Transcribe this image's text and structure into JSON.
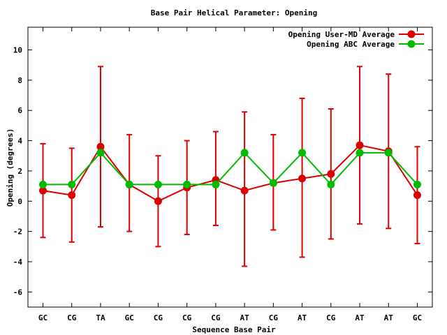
{
  "chart_data": {
    "type": "line",
    "title": "Base Pair Helical Parameter: Opening",
    "xlabel": "Sequence Base Pair",
    "ylabel": "Opening (degrees)",
    "ylim": [
      -7,
      11.5
    ],
    "yticks": [
      -6,
      -4,
      -2,
      0,
      2,
      4,
      6,
      8,
      10
    ],
    "categories": [
      "GC",
      "CG",
      "TA",
      "GC",
      "CG",
      "CG",
      "CG",
      "AT",
      "CG",
      "AT",
      "CG",
      "AT",
      "AT",
      "GC"
    ],
    "legend_position": "top-right",
    "series": [
      {
        "name": "Opening User-MD Average",
        "color": "#dd0000",
        "values": [
          0.7,
          0.4,
          3.6,
          1.1,
          0.0,
          0.9,
          1.4,
          0.7,
          1.2,
          1.5,
          1.8,
          3.7,
          3.3,
          0.4
        ],
        "error_low": [
          -2.4,
          -2.7,
          -1.7,
          -2.0,
          -3.0,
          -2.2,
          -1.6,
          -4.3,
          -1.9,
          -3.7,
          -2.5,
          -1.5,
          -1.8,
          -2.8
        ],
        "error_high": [
          3.8,
          3.5,
          8.9,
          4.4,
          3.0,
          4.0,
          4.6,
          5.9,
          4.4,
          6.8,
          6.1,
          8.9,
          8.4,
          3.6
        ]
      },
      {
        "name": "Opening ABC Average",
        "color": "#00bb00",
        "values": [
          1.1,
          1.1,
          3.2,
          1.1,
          1.1,
          1.1,
          1.1,
          3.2,
          1.2,
          3.2,
          1.1,
          3.2,
          3.2,
          1.1
        ]
      }
    ]
  }
}
